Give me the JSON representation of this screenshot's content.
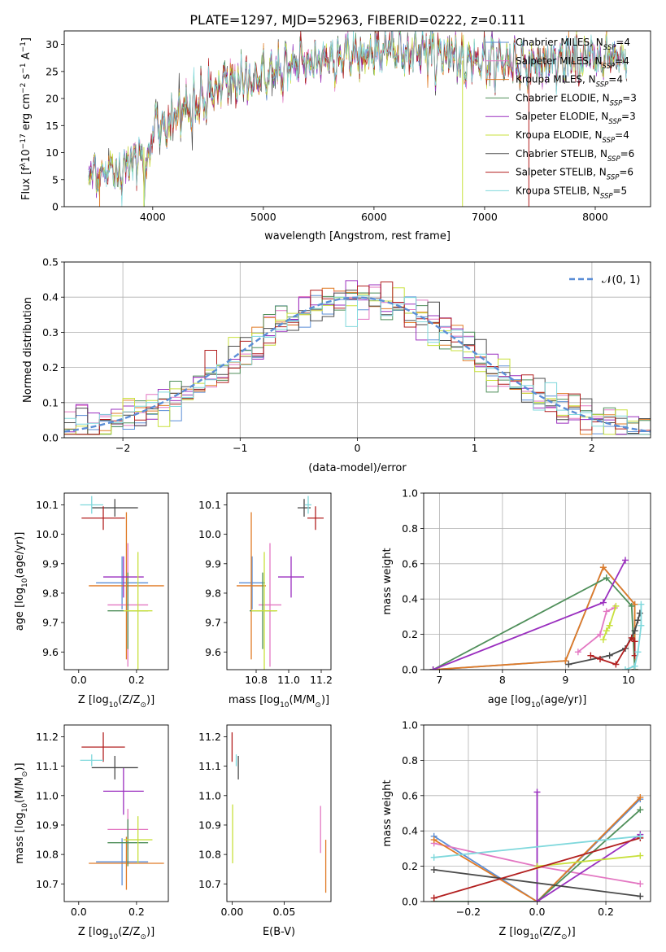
{
  "figure": {
    "title": "PLATE=1297, MJD=52963, FIBERID=0222, z=0.111"
  },
  "models": [
    {
      "name": "Chabrier MILES, N",
      "sub": "SSP",
      "suffix": "=4",
      "color": "#5b8ed6"
    },
    {
      "name": "Salpeter MILES, N",
      "sub": "SSP",
      "suffix": "=4",
      "color": "#e377c2"
    },
    {
      "name": "Kroupa MILES, N",
      "sub": "SSP",
      "suffix": "=4",
      "color": "#e07b26"
    },
    {
      "name": "Chabrier ELODIE, N",
      "sub": "SSP",
      "suffix": "=3",
      "color": "#4f8f5a"
    },
    {
      "name": "Salpeter ELODIE, N",
      "sub": "SSP",
      "suffix": "=3",
      "color": "#9a2fbf"
    },
    {
      "name": "Kroupa ELODIE, N",
      "sub": "SSP",
      "suffix": "=4",
      "color": "#c8e03c"
    },
    {
      "name": "Chabrier STELIB, N",
      "sub": "SSP",
      "suffix": "=6",
      "color": "#4a4a4a"
    },
    {
      "name": "Salpeter STELIB, N",
      "sub": "SSP",
      "suffix": "=6",
      "color": "#b21f1f"
    },
    {
      "name": "Kroupa STELIB, N",
      "sub": "SSP",
      "suffix": "=5",
      "color": "#7fd8dc"
    }
  ],
  "chart_data": [
    {
      "id": "spectrum",
      "type": "line",
      "xlabel": "wavelength [Angstrom, rest frame]",
      "ylabel_parts": [
        "Flux [f",
        "λ",
        "10",
        "−17",
        " erg cm",
        "−2",
        " s",
        "−1",
        " A",
        "−1",
        "]"
      ],
      "xlim": [
        3200,
        8500
      ],
      "ylim": [
        0,
        32.5
      ],
      "xticks": [
        4000,
        5000,
        6000,
        7000,
        8000
      ],
      "yticks": [
        0,
        5,
        10,
        15,
        20,
        25,
        30
      ],
      "x_range_data": [
        3420,
        8290
      ],
      "continuum_anchors": {
        "x": [
          3420,
          3600,
          3800,
          3950,
          4000,
          4300,
          4600,
          5000,
          5300,
          5600,
          6000,
          6500,
          7000,
          7500,
          8000,
          8290
        ],
        "y": [
          6.5,
          6.2,
          8.0,
          10.5,
          14.5,
          17.5,
          22.0,
          24.5,
          26.5,
          27.5,
          29.0,
          28.5,
          27.0,
          26.5,
          27.5,
          27.5
        ]
      },
      "legend_loc": "upper right",
      "grid": false
    },
    {
      "id": "residual-histogram",
      "type": "histogram",
      "xlabel": "(data-model)/error",
      "ylabel": "Normed distribution",
      "xlim": [
        -2.5,
        2.5
      ],
      "ylim": [
        0,
        0.5
      ],
      "xticks": [
        -2,
        -1,
        0,
        1,
        2
      ],
      "yticks": [
        0.0,
        0.1,
        0.2,
        0.3,
        0.4,
        0.5
      ],
      "bin_width": 0.1,
      "reference_curve": {
        "name": "N(0,1)",
        "mean": 0,
        "sigma": 1,
        "style": "dashed",
        "color": "#5b8ed6"
      },
      "legend_loc": "upper right",
      "grid": true
    },
    {
      "id": "age-vs-Z",
      "type": "errorbar",
      "xlabel_parts": [
        "Z [log",
        "10",
        "(Z/Z",
        "⊙",
        ")]"
      ],
      "ylabel_parts": [
        "age  [log",
        "10",
        "(age/yr)]"
      ],
      "xlim": [
        -0.05,
        0.31
      ],
      "ylim": [
        9.54,
        10.14
      ],
      "xticks": [
        0.0,
        0.2
      ],
      "yticks": [
        9.6,
        9.7,
        9.8,
        9.9,
        10.0,
        10.1
      ],
      "points": [
        {
          "x": 0.15,
          "xerr": 0.09,
          "y": 9.835,
          "yerr": 0.09
        },
        {
          "x": 0.17,
          "xerr": 0.07,
          "y": 9.76,
          "yerr": 0.21
        },
        {
          "x": 0.165,
          "xerr": 0.13,
          "y": 9.825,
          "yerr": 0.25
        },
        {
          "x": 0.17,
          "xerr": 0.07,
          "y": 9.74,
          "yerr": 0.13
        },
        {
          "x": 0.155,
          "xerr": 0.07,
          "y": 9.855,
          "yerr": 0.07
        },
        {
          "x": 0.205,
          "xerr": 0.05,
          "y": 9.74,
          "yerr": 0.2
        },
        {
          "x": 0.125,
          "xerr": 0.08,
          "y": 10.09,
          "yerr": 0.03
        },
        {
          "x": 0.085,
          "xerr": 0.075,
          "y": 10.055,
          "yerr": 0.04
        },
        {
          "x": 0.045,
          "xerr": 0.04,
          "y": 10.1,
          "yerr": 0.03
        }
      ],
      "grid": false
    },
    {
      "id": "age-vs-mass",
      "type": "errorbar",
      "xlabel_parts": [
        "mass [log",
        "10",
        "(M/M",
        "⊙",
        ")]"
      ],
      "ylabel": "",
      "xlim": [
        10.62,
        11.26
      ],
      "ylim": [
        9.54,
        10.14
      ],
      "xticks": [
        10.8,
        11.0,
        11.2
      ],
      "yticks": [
        9.6,
        9.7,
        9.8,
        9.9,
        10.0,
        10.1
      ],
      "points": [
        {
          "x": 10.775,
          "xerr": 0.08,
          "y": 9.835,
          "yerr": 0.09
        },
        {
          "x": 10.885,
          "xerr": 0.07,
          "y": 9.76,
          "yerr": 0.21
        },
        {
          "x": 10.77,
          "xerr": 0.09,
          "y": 9.825,
          "yerr": 0.25
        },
        {
          "x": 10.84,
          "xerr": 0.08,
          "y": 9.74,
          "yerr": 0.13
        },
        {
          "x": 11.015,
          "xerr": 0.08,
          "y": 9.855,
          "yerr": 0.07
        },
        {
          "x": 10.85,
          "xerr": 0.08,
          "y": 9.74,
          "yerr": 0.2
        },
        {
          "x": 11.095,
          "xerr": 0.04,
          "y": 10.09,
          "yerr": 0.03
        },
        {
          "x": 11.165,
          "xerr": 0.05,
          "y": 10.055,
          "yerr": 0.04
        },
        {
          "x": 11.12,
          "xerr": 0.02,
          "y": 10.1,
          "yerr": 0.03
        }
      ],
      "grid": false
    },
    {
      "id": "mass-weight-vs-age",
      "type": "line",
      "xlabel_parts": [
        "age  [log",
        "10",
        "(age/yr)]"
      ],
      "ylabel": "mass weight",
      "xlim": [
        6.75,
        10.35
      ],
      "ylim": [
        0.0,
        1.0
      ],
      "xticks": [
        7,
        8,
        9,
        10
      ],
      "yticks": [
        0.0,
        0.2,
        0.4,
        0.6,
        0.8,
        1.0
      ],
      "series": [
        {
          "x": [
            6.9,
            9.0,
            9.6,
            10.1,
            10.1
          ],
          "y": [
            0.0,
            0.05,
            0.58,
            0.37,
            0.0
          ]
        },
        {
          "x": [
            9.2,
            9.55,
            9.65,
            9.78
          ],
          "y": [
            0.1,
            0.2,
            0.33,
            0.35
          ]
        },
        {
          "x": [
            6.9,
            9.0,
            9.6,
            10.1,
            10.1
          ],
          "y": [
            0.0,
            0.05,
            0.58,
            0.37,
            0.0
          ]
        },
        {
          "x": [
            6.9,
            9.65,
            10.05,
            10.1
          ],
          "y": [
            0.0,
            0.52,
            0.36,
            0.0
          ]
        },
        {
          "x": [
            6.9,
            9.6,
            9.95
          ],
          "y": [
            0.0,
            0.38,
            0.62
          ]
        },
        {
          "x": [
            9.6,
            9.65,
            9.7,
            9.8
          ],
          "y": [
            0.17,
            0.22,
            0.25,
            0.36
          ]
        },
        {
          "x": [
            9.05,
            9.7,
            9.95,
            10.1,
            10.15,
            10.18
          ],
          "y": [
            0.03,
            0.08,
            0.12,
            0.22,
            0.28,
            0.32
          ]
        },
        {
          "x": [
            9.4,
            9.55,
            9.8,
            10.05,
            10.1,
            10.1
          ],
          "y": [
            0.08,
            0.06,
            0.03,
            0.18,
            0.16,
            0.08
          ]
        },
        {
          "x": [
            9.95,
            10.1,
            10.15,
            10.2,
            10.2
          ],
          "y": [
            0.0,
            0.02,
            0.1,
            0.25,
            0.37
          ]
        }
      ],
      "grid": true
    },
    {
      "id": "mass-vs-Z",
      "type": "errorbar",
      "xlabel_parts": [
        "Z [log",
        "10",
        "(Z/Z",
        "⊙",
        ")]"
      ],
      "ylabel_parts": [
        "mass [log",
        "10",
        "(M/M",
        "⊙",
        ")]"
      ],
      "xlim": [
        -0.05,
        0.31
      ],
      "ylim": [
        10.64,
        11.24
      ],
      "xticks": [
        0.0,
        0.2
      ],
      "yticks": [
        10.7,
        10.8,
        10.9,
        11.0,
        11.1,
        11.2
      ],
      "points": [
        {
          "x": 0.15,
          "xerr": 0.09,
          "y": 10.775,
          "yerr": 0.08
        },
        {
          "x": 0.17,
          "xerr": 0.07,
          "y": 10.885,
          "yerr": 0.07
        },
        {
          "x": 0.165,
          "xerr": 0.13,
          "y": 10.77,
          "yerr": 0.09
        },
        {
          "x": 0.17,
          "xerr": 0.07,
          "y": 10.84,
          "yerr": 0.08
        },
        {
          "x": 0.155,
          "xerr": 0.07,
          "y": 11.015,
          "yerr": 0.08
        },
        {
          "x": 0.205,
          "xerr": 0.05,
          "y": 10.85,
          "yerr": 0.08
        },
        {
          "x": 0.125,
          "xerr": 0.08,
          "y": 11.095,
          "yerr": 0.04
        },
        {
          "x": 0.085,
          "xerr": 0.075,
          "y": 11.165,
          "yerr": 0.05
        },
        {
          "x": 0.045,
          "xerr": 0.04,
          "y": 11.12,
          "yerr": 0.02
        }
      ],
      "grid": false
    },
    {
      "id": "mass-vs-EBV",
      "type": "errorbar",
      "xlabel": "E(B-V)",
      "ylabel": "",
      "xlim": [
        -0.005,
        0.095
      ],
      "ylim": [
        10.64,
        11.24
      ],
      "xticks": [
        0.0,
        0.05
      ],
      "yticks": [
        10.7,
        10.8,
        10.9,
        11.0,
        11.1,
        11.2
      ],
      "points": [
        {
          "x": 0.085,
          "xerr": 0.0,
          "y": 10.885,
          "yerr": 0.08
        },
        {
          "x": 0.09,
          "xerr": 0.0,
          "y": 10.76,
          "yerr": 0.09
        },
        {
          "x": 0.0005,
          "xerr": 0.0,
          "y": 10.87,
          "yerr": 0.1
        },
        {
          "x": 0.006,
          "xerr": 0.0,
          "y": 11.095,
          "yerr": 0.04
        },
        {
          "x": 0.0,
          "xerr": 0.0,
          "y": 11.165,
          "yerr": 0.05
        },
        {
          "x": 0.004,
          "xerr": 0.0,
          "y": 11.12,
          "yerr": 0.02
        }
      ],
      "grid": false
    },
    {
      "id": "mass-weight-vs-Z",
      "type": "line",
      "xlabel_parts": [
        "Z [log",
        "10",
        "(Z/Z",
        "⊙",
        ")]"
      ],
      "ylabel": "mass weight",
      "xlim": [
        -0.33,
        0.33
      ],
      "ylim": [
        0.0,
        1.0
      ],
      "xticks": [
        -0.2,
        0.0,
        0.2
      ],
      "xticklabels": [
        "−0.2",
        "0.0",
        "0.2"
      ],
      "yticks": [
        0.0,
        0.2,
        0.4,
        0.6,
        0.8,
        1.0
      ],
      "series": [
        {
          "x": [
            -0.3,
            0.0,
            0.3
          ],
          "y": [
            0.37,
            0.0,
            0.58
          ]
        },
        {
          "x": [
            -0.3,
            0.0,
            0.3
          ],
          "y": [
            0.33,
            0.2,
            0.1
          ]
        },
        {
          "x": [
            -0.3,
            0.0,
            0.3
          ],
          "y": [
            0.35,
            0.0,
            0.59
          ]
        },
        {
          "x": [
            -0.3,
            0.0,
            0.3
          ],
          "y": [
            0.0,
            0.0,
            0.52
          ]
        },
        {
          "x": [
            0.0,
            0.0,
            0.3
          ],
          "y": [
            0.62,
            0.0,
            0.38
          ]
        },
        {
          "x": [
            0.0,
            0.3
          ],
          "y": [
            0.2,
            0.26
          ]
        },
        {
          "x": [
            -0.3,
            0.3
          ],
          "y": [
            0.18,
            0.03
          ]
        },
        {
          "x": [
            -0.3,
            0.3
          ],
          "y": [
            0.02,
            0.36
          ]
        },
        {
          "x": [
            -0.3,
            0.3
          ],
          "y": [
            0.25,
            0.37
          ]
        }
      ],
      "grid": true
    }
  ],
  "hist_legend": {
    "label": "𝒩(0, 1)"
  }
}
